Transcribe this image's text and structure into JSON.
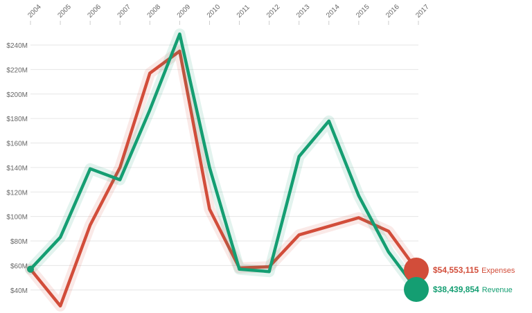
{
  "chart_data": {
    "type": "line",
    "x": [
      "2004",
      "2005",
      "2006",
      "2007",
      "2008",
      "2009",
      "2010",
      "2011",
      "2012",
      "2013",
      "2014",
      "2015",
      "2016",
      "2017"
    ],
    "y_ticks": [
      "$40M",
      "$60M",
      "$80M",
      "$100M",
      "$120M",
      "$140M",
      "$160M",
      "$180M",
      "$200M",
      "$220M",
      "$240M"
    ],
    "ylim": [
      28,
      253
    ],
    "grid": true,
    "legend_position": "right",
    "series": [
      {
        "name": "Expenses",
        "color": "#d24d3a",
        "values": [
          57,
          27,
          93,
          140,
          217,
          235,
          106,
          58,
          59,
          85,
          92,
          99,
          88,
          54.553115
        ],
        "end_label": "$54,553,115"
      },
      {
        "name": "Revenue",
        "color": "#149e72",
        "values": [
          57,
          83,
          139,
          130,
          187,
          249,
          140,
          57,
          55,
          149,
          178,
          117,
          71,
          38.439854
        ],
        "end_label": "$38,439,854"
      }
    ]
  }
}
